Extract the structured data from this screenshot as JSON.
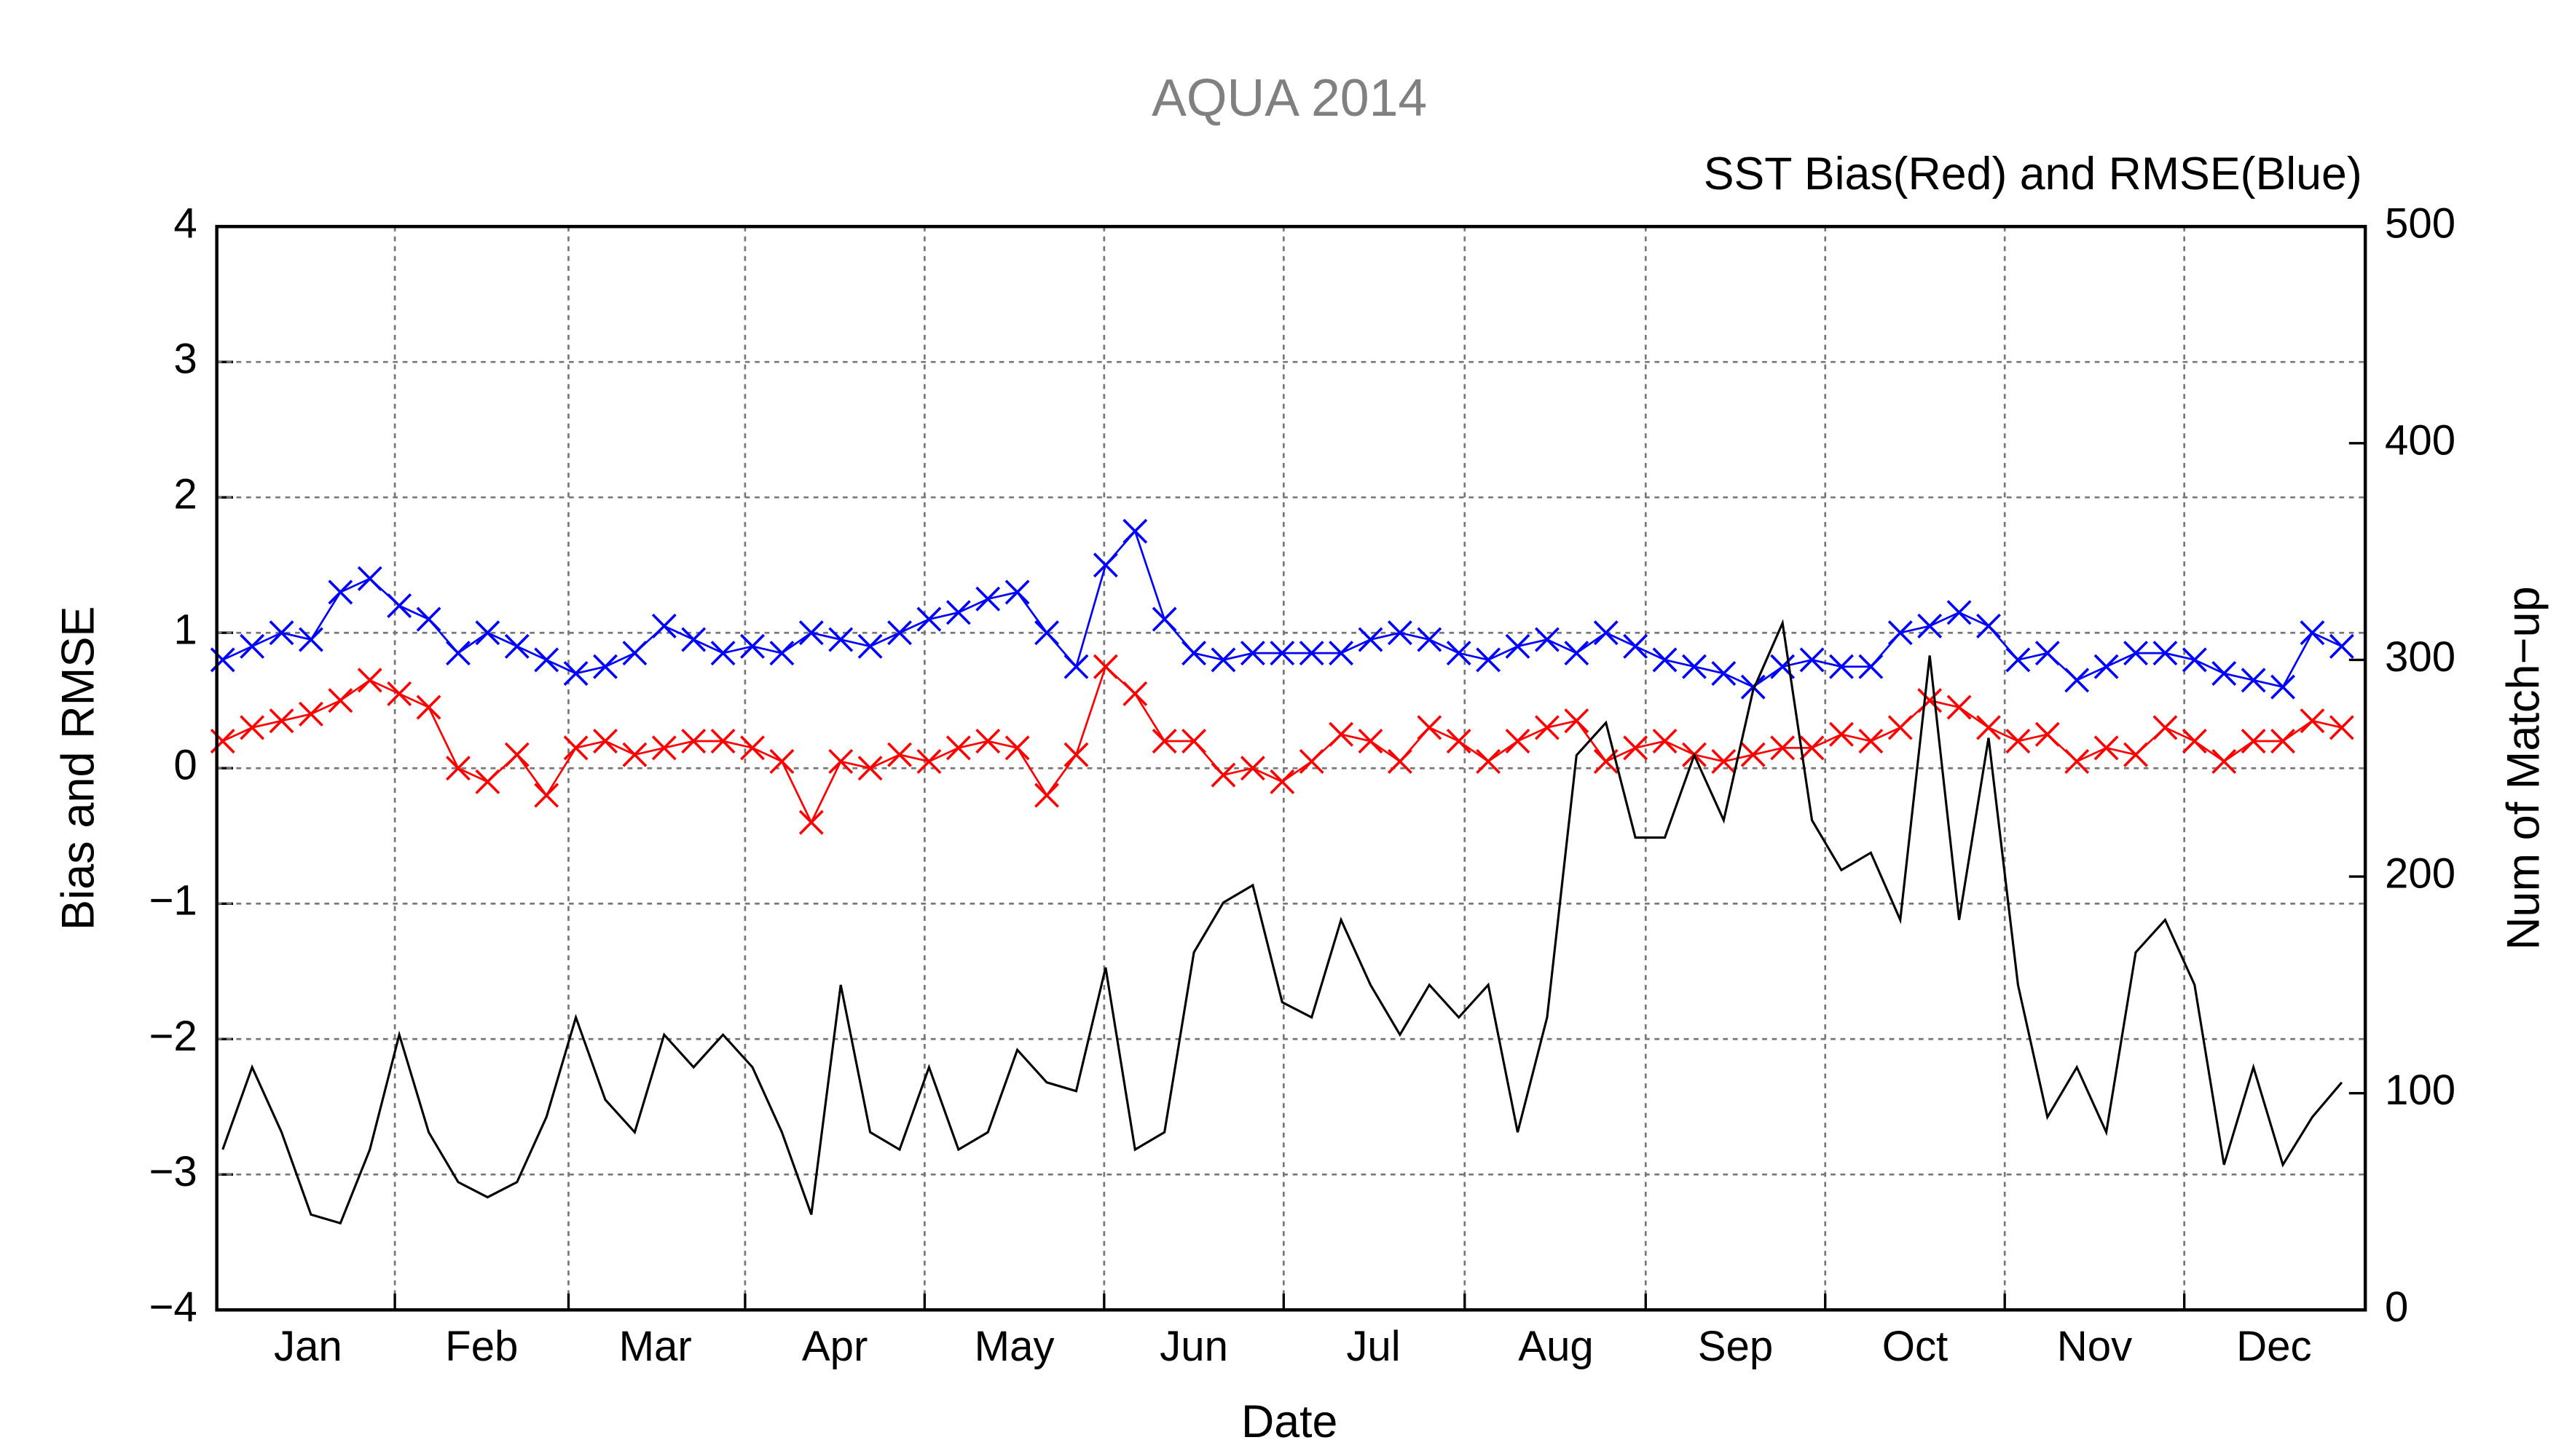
{
  "chart_data": {
    "type": "line",
    "title": "AQUA 2014",
    "subtitle": "SST Bias(Red) and RMSE(Blue)",
    "x_label": "Date",
    "y_label": "Bias and RMSE",
    "y2_label": "Num of Match−up",
    "xlim": [
      0,
      365
    ],
    "xticks": [
      {
        "value": 15.5,
        "label": "Jan"
      },
      {
        "value": 45,
        "label": "Feb"
      },
      {
        "value": 74.5,
        "label": "Mar"
      },
      {
        "value": 105,
        "label": "Apr"
      },
      {
        "value": 135.5,
        "label": "May"
      },
      {
        "value": 166,
        "label": "Jun"
      },
      {
        "value": 196.5,
        "label": "Jul"
      },
      {
        "value": 227.5,
        "label": "Aug"
      },
      {
        "value": 258,
        "label": "Sep"
      },
      {
        "value": 288.5,
        "label": "Oct"
      },
      {
        "value": 319,
        "label": "Nov"
      },
      {
        "value": 349.5,
        "label": "Dec"
      }
    ],
    "ylim": [
      -4,
      4
    ],
    "yticks": [
      {
        "value": -4,
        "label": "−4"
      },
      {
        "value": -3,
        "label": "−3"
      },
      {
        "value": -2,
        "label": "−2"
      },
      {
        "value": -1,
        "label": "−1"
      },
      0,
      1,
      2,
      3,
      4
    ],
    "y2lim": [
      0,
      500
    ],
    "y2ticks": [
      0,
      100,
      200,
      300,
      400,
      500
    ],
    "grid": true,
    "x": [
      1,
      6,
      11,
      16,
      21,
      26,
      31,
      36,
      41,
      46,
      51,
      56,
      61,
      66,
      71,
      76,
      81,
      86,
      91,
      96,
      101,
      106,
      111,
      116,
      121,
      126,
      131,
      136,
      141,
      146,
      151,
      156,
      161,
      166,
      171,
      176,
      181,
      186,
      191,
      196,
      201,
      206,
      211,
      216,
      221,
      226,
      231,
      236,
      241,
      246,
      251,
      256,
      261,
      266,
      271,
      276,
      281,
      286,
      291,
      296,
      301,
      306,
      311,
      316,
      321,
      326,
      331,
      336,
      341,
      346,
      351,
      356,
      361
    ],
    "series": [
      {
        "name": "RMSE",
        "color": "#0000ff",
        "marker": "x",
        "values": [
          0.8,
          0.9,
          1.0,
          0.95,
          1.3,
          1.4,
          1.2,
          1.1,
          0.85,
          1.0,
          0.9,
          0.8,
          0.7,
          0.75,
          0.85,
          1.05,
          0.95,
          0.85,
          0.9,
          0.85,
          1.0,
          0.95,
          0.9,
          1.0,
          1.1,
          1.15,
          1.25,
          1.3,
          1.0,
          0.75,
          1.5,
          1.75,
          1.1,
          0.85,
          0.8,
          0.85,
          0.85,
          0.85,
          0.85,
          0.95,
          1.0,
          0.95,
          0.85,
          0.8,
          0.9,
          0.95,
          0.85,
          1.0,
          0.9,
          0.8,
          0.75,
          0.7,
          0.6,
          0.75,
          0.8,
          0.75,
          0.75,
          1.0,
          1.05,
          1.15,
          1.05,
          0.8,
          0.85,
          0.65,
          0.75,
          0.85,
          0.85,
          0.8,
          0.7,
          0.65,
          0.6,
          1.0,
          0.9
        ]
      },
      {
        "name": "Bias",
        "color": "#ff0000",
        "marker": "x",
        "values": [
          0.2,
          0.3,
          0.35,
          0.4,
          0.5,
          0.65,
          0.55,
          0.45,
          0.0,
          -0.1,
          0.1,
          -0.2,
          0.15,
          0.2,
          0.1,
          0.15,
          0.2,
          0.2,
          0.15,
          0.05,
          -0.4,
          0.05,
          0.0,
          0.1,
          0.05,
          0.15,
          0.2,
          0.15,
          -0.2,
          0.1,
          0.75,
          0.55,
          0.2,
          0.2,
          -0.05,
          0.0,
          -0.1,
          0.05,
          0.25,
          0.2,
          0.05,
          0.3,
          0.2,
          0.05,
          0.2,
          0.3,
          0.35,
          0.05,
          0.15,
          0.2,
          0.1,
          0.05,
          0.1,
          0.15,
          0.15,
          0.25,
          0.2,
          0.3,
          0.5,
          0.45,
          0.3,
          0.2,
          0.25,
          0.05,
          0.15,
          0.1,
          0.3,
          0.2,
          0.05,
          0.2,
          0.2,
          0.35,
          0.3
        ]
      },
      {
        "name": "Num of Match−up",
        "color": "#000000",
        "axis": "y2",
        "values": [
          74,
          112,
          82,
          44,
          40,
          74,
          127,
          82,
          59,
          52,
          59,
          89,
          135,
          97,
          82,
          127,
          112,
          127,
          112,
          82,
          44,
          150,
          82,
          74,
          112,
          74,
          82,
          120,
          105,
          101,
          158,
          74,
          82,
          165,
          188,
          196,
          142,
          135,
          180,
          150,
          127,
          150,
          135,
          150,
          82,
          135,
          256,
          271,
          218,
          218,
          256,
          226,
          286,
          317,
          226,
          203,
          211,
          180,
          302,
          180,
          264,
          150,
          89,
          112,
          82,
          165,
          180,
          150,
          67,
          112,
          67,
          89,
          105
        ]
      }
    ]
  }
}
